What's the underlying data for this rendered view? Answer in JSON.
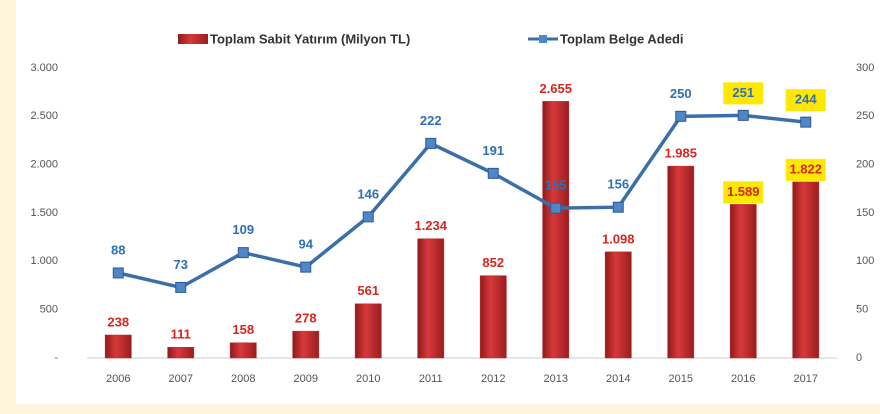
{
  "chart_data": {
    "type": "bar",
    "categories": [
      "2006",
      "2007",
      "2008",
      "2009",
      "2010",
      "2011",
      "2012",
      "2013",
      "2014",
      "2015",
      "2016",
      "2017"
    ],
    "series": [
      {
        "name": "Toplam Sabit Yatırım (Milyon TL)",
        "type": "bar",
        "color": "#c0282a",
        "label_color": "#d8261f",
        "values": [
          238,
          111,
          158,
          278,
          561,
          1234,
          852,
          2655,
          1098,
          1985,
          1589,
          1822
        ],
        "value_labels": [
          "238",
          "111",
          "158",
          "278",
          "561",
          "1.234",
          "852",
          "2.655",
          "1.098",
          "1.985",
          "1.589",
          "1.822"
        ]
      },
      {
        "name": "Toplam Belge Adedi",
        "type": "line",
        "axis": "y2",
        "color": "#3c6ea8",
        "label_color": "#2e6fb7",
        "values": [
          88,
          73,
          109,
          94,
          146,
          222,
          191,
          155,
          156,
          250,
          251,
          244
        ]
      }
    ],
    "ylim": [
      0,
      3000
    ],
    "yticks": [
      {
        "value": 0,
        "label": "-"
      },
      500,
      {
        "value": 1000,
        "label": "1.000"
      },
      {
        "value": 1500,
        "label": "1.500"
      },
      {
        "value": 2000,
        "label": "2.000"
      },
      {
        "value": 2500,
        "label": "2.500"
      },
      {
        "value": 3000,
        "label": "3.000"
      }
    ],
    "y2lim": [
      0,
      300
    ],
    "y2ticks": [
      0,
      50,
      100,
      150,
      200,
      250,
      300
    ],
    "highlighted_points": [
      10,
      11
    ],
    "highlight_color": "#ffe800",
    "legend": "top"
  }
}
